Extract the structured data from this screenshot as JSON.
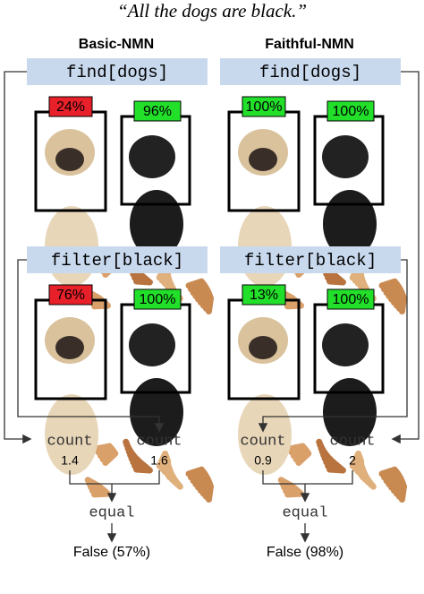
{
  "caption": "“All the dogs are black.”",
  "panels": [
    {
      "title": "Basic-NMN",
      "find": {
        "label": "find[dogs]",
        "scores": [
          "24%",
          "96%"
        ],
        "colors": [
          "#e8202a",
          "#22e02a"
        ]
      },
      "filter": {
        "label": "filter[black]",
        "scores": [
          "76%",
          "100%"
        ],
        "colors": [
          "#e8202a",
          "#22e02a"
        ]
      },
      "counts": [
        {
          "label": "count",
          "value": "1.4"
        },
        {
          "label": "count",
          "value": "1.6"
        }
      ],
      "compare": "equal",
      "result": "False (57%)"
    },
    {
      "title": "Faithful-NMN",
      "find": {
        "label": "find[dogs]",
        "scores": [
          "100%",
          "100%"
        ],
        "colors": [
          "#22e02a",
          "#22e02a"
        ]
      },
      "filter": {
        "label": "filter[black]",
        "scores": [
          "13%",
          "100%"
        ],
        "colors": [
          "#22e02a",
          "#22e02a"
        ]
      },
      "counts": [
        {
          "label": "count",
          "value": "0.9"
        },
        {
          "label": "count",
          "value": "2"
        }
      ],
      "compare": "equal",
      "result": "False (98%)"
    }
  ]
}
